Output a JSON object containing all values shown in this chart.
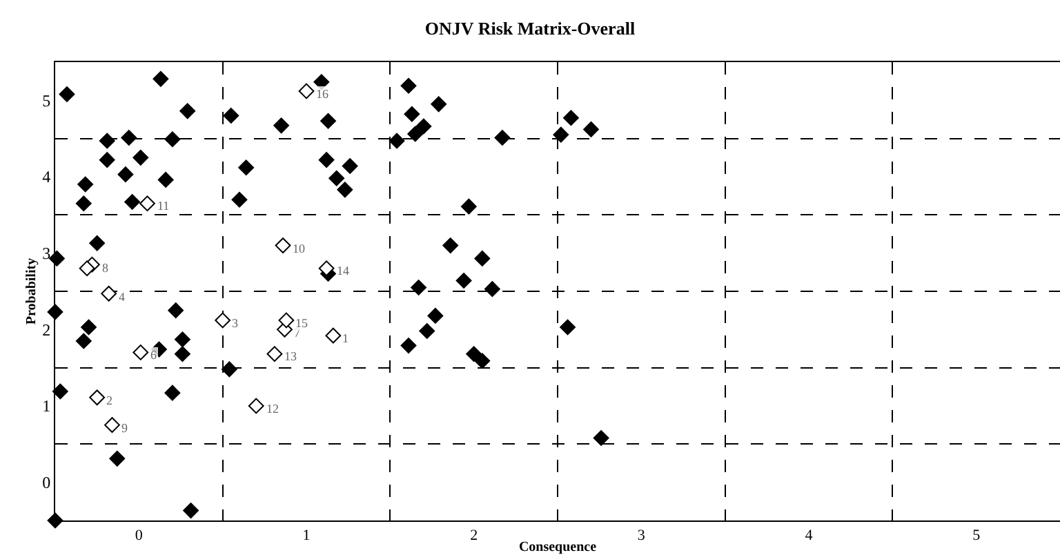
{
  "chart_data": {
    "type": "scatter",
    "title": "ONJV Risk Matrix-Overall",
    "xlabel": "Consequence",
    "ylabel": "Probability",
    "xlim": [
      -0.5,
      5.5
    ],
    "ylim": [
      -0.5,
      5.5
    ],
    "xticks": [
      0,
      1,
      2,
      3,
      4,
      5
    ],
    "yticks": [
      0,
      1,
      2,
      3,
      4,
      5
    ],
    "grid": true,
    "marker": "diamond",
    "annotations": [
      {
        "text": "1",
        "x": 1.16,
        "y": 1.92
      },
      {
        "text": "2",
        "x": -0.25,
        "y": 1.11
      },
      {
        "text": "3",
        "x": 0.5,
        "y": 2.12
      },
      {
        "text": "4",
        "x": -0.18,
        "y": 2.47
      },
      {
        "text": "6",
        "x": 0.01,
        "y": 1.7
      },
      {
        "text": "7",
        "x": 0.87,
        "y": 2.0
      },
      {
        "text": "8",
        "x": -0.28,
        "y": 2.85
      },
      {
        "text": "9",
        "x": -0.16,
        "y": 0.75
      },
      {
        "text": "10",
        "x": 0.86,
        "y": 3.1
      },
      {
        "text": "11",
        "x": 0.05,
        "y": 3.65
      },
      {
        "text": "12",
        "x": 0.7,
        "y": 1.0
      },
      {
        "text": "13",
        "x": 0.81,
        "y": 1.68
      },
      {
        "text": "14",
        "x": 1.12,
        "y": 2.8
      },
      {
        "text": "15",
        "x": 0.88,
        "y": 2.12
      },
      {
        "text": "16",
        "x": 1.0,
        "y": 5.12
      }
    ],
    "series": [
      {
        "color": "#000000",
        "x": [
          -0.43,
          0.13,
          0.29,
          -0.19,
          -0.06,
          0.2,
          -0.19,
          0.01,
          -0.08,
          -0.32,
          0.16,
          -0.33,
          -0.04,
          -0.25,
          -0.49,
          -0.5,
          0.22,
          -0.3,
          -0.33,
          0.12,
          0.26,
          0.26,
          -0.47,
          0.2,
          -0.13,
          0.31,
          -0.5,
          1.09,
          0.55,
          0.85,
          1.13,
          1.54,
          0.64,
          1.12,
          1.26,
          1.18,
          1.23,
          0.6,
          1.13,
          0.54,
          1.61,
          1.79,
          1.63,
          1.7,
          1.65,
          2.17,
          2.52,
          2.58,
          2.7,
          1.97,
          1.86,
          2.05,
          1.94,
          1.67,
          2.11,
          1.77,
          1.72,
          1.61,
          2.0,
          2.05,
          2.56,
          2.76
        ],
        "values": [
          5.08,
          5.28,
          4.86,
          4.47,
          4.51,
          4.49,
          4.22,
          4.25,
          4.03,
          3.9,
          3.96,
          3.65,
          3.67,
          3.13,
          2.93,
          2.23,
          2.25,
          2.03,
          1.85,
          1.74,
          1.87,
          1.68,
          1.19,
          1.17,
          0.31,
          -0.37,
          -0.5,
          5.24,
          4.8,
          4.67,
          4.73,
          4.47,
          4.12,
          4.22,
          4.14,
          3.98,
          3.83,
          3.7,
          2.73,
          1.48,
          5.19,
          4.95,
          4.82,
          4.66,
          4.56,
          4.51,
          4.55,
          4.77,
          4.62,
          3.61,
          3.1,
          2.93,
          2.64,
          2.55,
          2.53,
          2.18,
          1.98,
          1.79,
          1.68,
          1.59,
          2.03,
          0.58
        ]
      },
      {
        "color": "#ffffff",
        "x": [
          1.16,
          -0.25,
          0.5,
          -0.18,
          0.01,
          0.87,
          -0.28,
          -0.16,
          0.86,
          0.05,
          0.7,
          0.81,
          1.12,
          0.88,
          1.0,
          -0.31
        ],
        "values": [
          1.92,
          1.11,
          2.12,
          2.47,
          1.7,
          2.0,
          2.85,
          0.75,
          3.1,
          3.65,
          1.0,
          1.68,
          2.8,
          2.12,
          5.12,
          2.8
        ]
      }
    ]
  }
}
